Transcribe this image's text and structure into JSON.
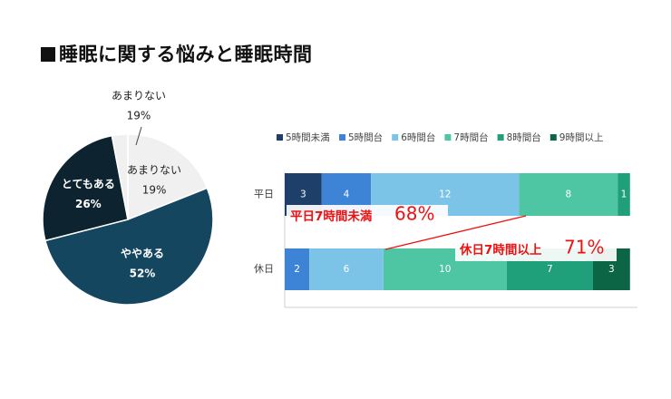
{
  "title": "睡眠に関する悩みと睡眠時間",
  "chart_data": [
    {
      "type": "pie",
      "slices": [
        {
          "label": "あまりない",
          "value": 19,
          "display": "19%",
          "color": "#f0f0f0"
        },
        {
          "label": "ややある",
          "value": 52,
          "display": "52%",
          "color": "#154660"
        },
        {
          "label": "とてもある",
          "value": 26,
          "display": "26%",
          "color": "#0d2430"
        },
        {
          "label": "",
          "value": 3,
          "display": "",
          "color": "#f0f0f0"
        }
      ],
      "callout": {
        "label": "あまりない",
        "value": "19%"
      }
    },
    {
      "type": "bar",
      "orientation": "horizontal",
      "stacked": true,
      "categories": [
        "平日",
        "休日"
      ],
      "series": [
        {
          "name": "5時間未満",
          "color": "#1d3f6a",
          "values": [
            3,
            0
          ]
        },
        {
          "name": "5時間台",
          "color": "#3d84d6",
          "values": [
            4,
            2
          ]
        },
        {
          "name": "6時間台",
          "color": "#7cc3e8",
          "values": [
            12,
            6
          ]
        },
        {
          "name": "7時間台",
          "color": "#4fc6a3",
          "values": [
            8,
            10
          ]
        },
        {
          "name": "8時間台",
          "color": "#1fa07a",
          "values": [
            1,
            7
          ]
        },
        {
          "name": "9時間以上",
          "color": "#0c6646",
          "values": [
            0,
            3
          ]
        }
      ],
      "xlim": [
        0,
        28
      ],
      "legend_position": "top",
      "annotations": [
        {
          "text": "平日7時間未満",
          "value": "68%"
        },
        {
          "text": "休日7時間以上",
          "value": "71%"
        }
      ],
      "annotation_color": "#ee1111"
    }
  ]
}
